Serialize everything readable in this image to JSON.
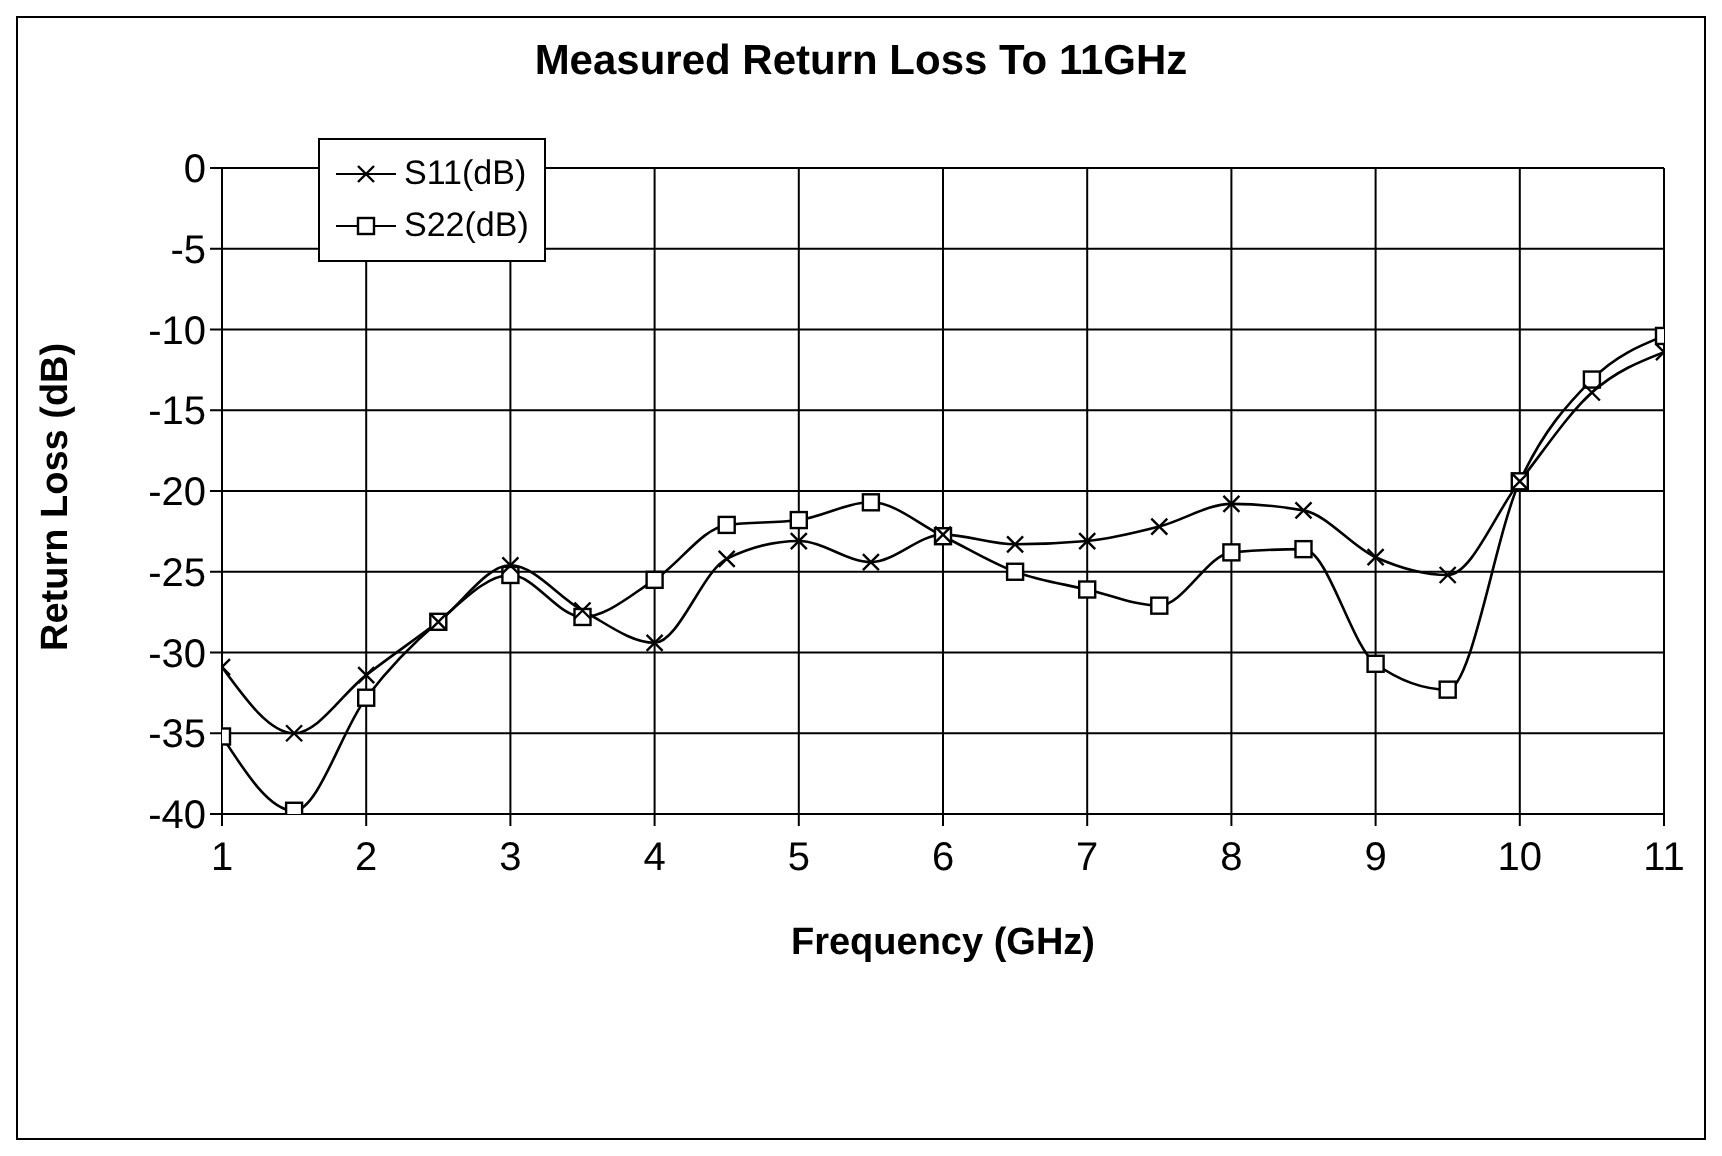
{
  "chart_data": {
    "type": "line",
    "title": "Measured Return Loss To 11GHz",
    "xlabel": "Frequency (GHz)",
    "ylabel": "Return Loss (dB)",
    "x": [
      1,
      1.5,
      2,
      2.5,
      3,
      3.5,
      4,
      4.5,
      5,
      5.5,
      6,
      6.5,
      7,
      7.5,
      8,
      8.5,
      9,
      9.5,
      10,
      10.5,
      11
    ],
    "series": [
      {
        "name": "S11(dB)",
        "color": "#000000",
        "marker": "cross",
        "values": [
          -30.9,
          -35,
          -31.4,
          -28.1,
          -24.6,
          -27.4,
          -29.4,
          -24.2,
          -23.1,
          -24.4,
          -22.7,
          -23.3,
          -23.1,
          -22.2,
          -20.8,
          -21.2,
          -24.1,
          -25.2,
          -19.4,
          -13.9,
          -11.4
        ]
      },
      {
        "name": "S22(dB)",
        "color": "#000000",
        "marker": "square",
        "values": [
          -35.2,
          -39.8,
          -32.8,
          -28.1,
          -25.2,
          -27.8,
          -25.5,
          -22.1,
          -21.8,
          -20.7,
          -22.8,
          -25,
          -26.1,
          -27.1,
          -23.8,
          -23.6,
          -30.7,
          -32.3,
          -19.4,
          -13.1,
          -10.4
        ]
      }
    ],
    "xlim": [
      1,
      11
    ],
    "xticks": [
      1,
      2,
      3,
      4,
      5,
      6,
      7,
      8,
      9,
      10,
      11
    ],
    "ylim": [
      -40,
      0
    ],
    "yticks": [
      -40,
      -35,
      -30,
      -25,
      -20,
      -15,
      -10,
      -5,
      0
    ],
    "grid": true,
    "legend": "top left"
  }
}
